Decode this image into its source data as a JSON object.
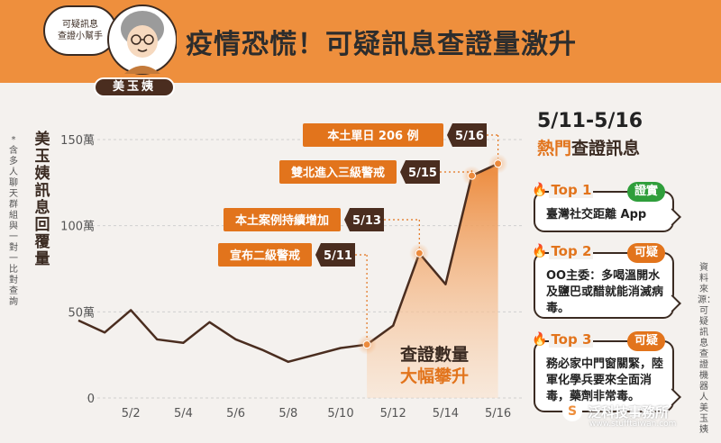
{
  "header": {
    "title": "疫情恐慌！可疑訊息查證量激升",
    "bubble_line1": "可疑訊息",
    "bubble_line2": "查證小幫手",
    "mascot_name": "美玉姨"
  },
  "side_note": "*含多人聊天群組與一對一比對查詢",
  "source_note": "資料來源：可疑訊息查證機器人美玉姨",
  "right_panel": {
    "date_range": "5/11-5/16",
    "subtitle_hot": "熱門",
    "subtitle_rest": "查證訊息",
    "items": [
      {
        "rank": "Top 1",
        "verdict": "證實",
        "verdict_color": "#2f9e3b",
        "text": "臺灣社交距離 App"
      },
      {
        "rank": "Top 2",
        "verdict": "可疑",
        "verdict_color": "#e2741c",
        "text": "OO主委：多喝溫開水及鹽巴或醋就能消滅病毒。"
      },
      {
        "rank": "Top 3",
        "verdict": "可疑",
        "verdict_color": "#e2741c",
        "text": "務必家中門窗關緊，陸軍化學兵要來全面消毒，藥劑非常毒。"
      }
    ]
  },
  "logo": {
    "name": "泛科技事務所",
    "url": "www.stufftaiwan.com"
  },
  "chart_data": {
    "type": "line",
    "title": "",
    "ylabel": "美玉姨訊息回覆量",
    "ylim": [
      0,
      1500000
    ],
    "y_ticks": [
      {
        "value": 0,
        "label": "0"
      },
      {
        "value": 500000,
        "label": "50萬"
      },
      {
        "value": 1000000,
        "label": "100萬"
      },
      {
        "value": 1500000,
        "label": "150萬"
      }
    ],
    "x": [
      "4/30",
      "5/1",
      "5/2",
      "5/3",
      "5/4",
      "5/5",
      "5/6",
      "5/7",
      "5/8",
      "5/9",
      "5/10",
      "5/11",
      "5/12",
      "5/13",
      "5/14",
      "5/15",
      "5/16"
    ],
    "x_tick_labels": [
      "5/2",
      "5/4",
      "5/6",
      "5/8",
      "5/10",
      "5/12",
      "5/14",
      "5/16"
    ],
    "values": [
      450000,
      380000,
      510000,
      340000,
      320000,
      440000,
      340000,
      280000,
      210000,
      250000,
      290000,
      310000,
      420000,
      840000,
      660000,
      1290000,
      1360000
    ],
    "highlight_area_label_1": "查證數量",
    "highlight_area_label_2": "大幅攀升",
    "annotations": [
      {
        "x": "5/11",
        "date": "5/11",
        "text": "宣布二級警戒"
      },
      {
        "x": "5/13",
        "date": "5/13",
        "text": "本土案例持續增加"
      },
      {
        "x": "5/15",
        "date": "5/15",
        "text": "雙北進入三級警戒"
      },
      {
        "x": "5/16",
        "date": "5/16",
        "text": "本土單日 206 例"
      }
    ]
  }
}
